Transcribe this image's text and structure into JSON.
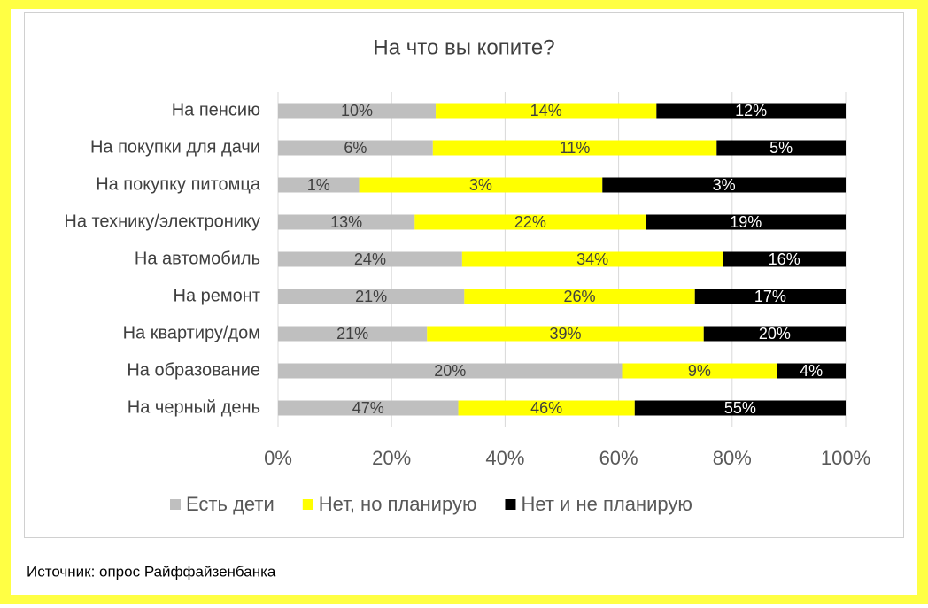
{
  "chart_data": {
    "type": "bar",
    "orientation": "horizontal",
    "stacking": "percent",
    "title": "На что вы копите?",
    "source": "Источник: опрос Райффайзенбанка",
    "categories": [
      "На пенсию",
      "На покупки для дачи",
      "На покупку питомца",
      "На технику/электронику",
      "На автомобиль",
      "На ремонт",
      "На квартиру/дом",
      "На образование",
      "На черный день"
    ],
    "series": [
      {
        "name": "Есть дети",
        "color": "#bfbfbf",
        "label_color": "#404040",
        "values": [
          10,
          6,
          1,
          13,
          24,
          21,
          21,
          20,
          47
        ],
        "value_labels": [
          "10%",
          "6%",
          "1%",
          "13%",
          "24%",
          "21%",
          "21%",
          "20%",
          "47%"
        ]
      },
      {
        "name": "Нет, но планирую",
        "color": "#ffff00",
        "label_color": "#404040",
        "values": [
          14,
          11,
          3,
          22,
          34,
          26,
          39,
          9,
          46
        ],
        "value_labels": [
          "14%",
          "11%",
          "3%",
          "22%",
          "34%",
          "26%",
          "39%",
          "9%",
          "46%"
        ]
      },
      {
        "name": "Нет и не планирую",
        "color": "#000000",
        "label_color": "#ffffff",
        "values": [
          12,
          5,
          3,
          19,
          16,
          17,
          20,
          4,
          55
        ],
        "value_labels": [
          "12%",
          "5%",
          "3%",
          "19%",
          "16%",
          "17%",
          "20%",
          "4%",
          "55%"
        ]
      }
    ],
    "xlim": [
      0,
      100
    ],
    "xticks": [
      {
        "value": 0,
        "label": "0%"
      },
      {
        "value": 20,
        "label": "20%"
      },
      {
        "value": 40,
        "label": "40%"
      },
      {
        "value": 60,
        "label": "60%"
      },
      {
        "value": 80,
        "label": "80%"
      },
      {
        "value": 100,
        "label": "100%"
      }
    ],
    "grid": true,
    "legend": "bottom"
  }
}
